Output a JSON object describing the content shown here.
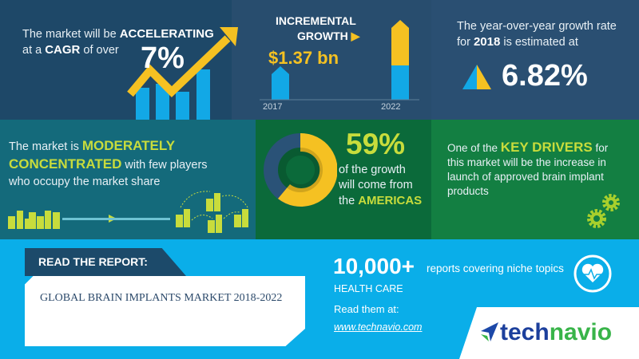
{
  "cagr": {
    "line1": "The market will be ",
    "accent1": "ACCELERATING",
    "line2a": "at a ",
    "accent2": "CAGR",
    "line2b": " of over",
    "value": "7%"
  },
  "incremental": {
    "label1": "INCREMENTAL",
    "label2": "GROWTH",
    "value": "$1.37 bn",
    "year_start": "2017",
    "year_end": "2022"
  },
  "yoy": {
    "line1": "The year-over-year growth rate",
    "line2a": "for ",
    "year": "2018",
    "line2b": " is estimated at",
    "value": "6.82%"
  },
  "concentration": {
    "line1": "The market is ",
    "accent1": "MODERATELY",
    "accent2": "CONCENTRATED",
    "line2b": " with few players",
    "line3": "who occupy the market share"
  },
  "region": {
    "value": "59%",
    "line1": "of the growth",
    "line2": "will come from",
    "line3a": "the ",
    "accent": "AMERICAS",
    "share": 0.59
  },
  "drivers": {
    "line1a": "One of the ",
    "accent": "KEY DRIVERS",
    "line1b": " for",
    "rest": "this market will be the increase in launch of approved brain implant products"
  },
  "report": {
    "tab": "READ THE REPORT:",
    "title": "GLOBAL BRAIN IMPLANTS MARKET 2018-2022"
  },
  "promo": {
    "count": "10,000+",
    "desc": "reports covering niche topics",
    "category": "HEALTH CARE",
    "read": "Read them at:",
    "url": "www.technavio.com"
  },
  "logo": {
    "part1": "tech",
    "part2": "navio"
  },
  "colors": {
    "yellow": "#f5c122",
    "blue": "#12a8e6",
    "lime": "#c8dc3c",
    "navy": "#1e4868"
  }
}
